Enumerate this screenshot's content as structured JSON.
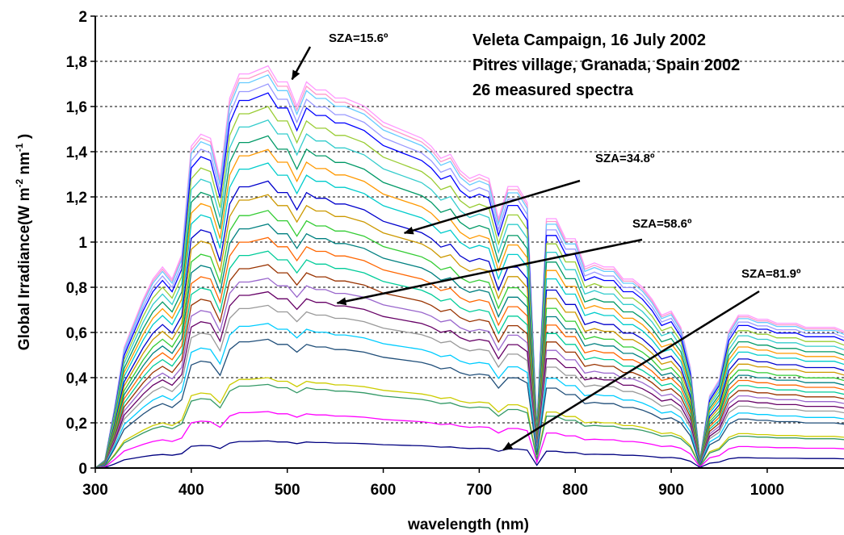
{
  "chart_data": {
    "type": "line",
    "title": "",
    "xlabel": "wavelength (nm)",
    "ylabel": {
      "main": "Global Irradiance(W m",
      "sup1": "-2",
      "mid": " nm",
      "sup2": "-1",
      "end": " )"
    },
    "xlim": [
      300,
      1080
    ],
    "ylim": [
      0,
      2
    ],
    "x_ticks": [
      "300",
      "400",
      "500",
      "600",
      "700",
      "800",
      "900",
      "1000"
    ],
    "y_ticks": [
      "0",
      "0,2",
      "0,4",
      "0,6",
      "0,8",
      "1",
      "1,2",
      "1,4",
      "1,6",
      "1,8",
      "2"
    ],
    "grid": "horizontal dashed",
    "info_text": [
      "Veleta Campaign, 16 July 2002",
      "Pitres village, Granada, Spain 2002",
      "26 measured spectra"
    ],
    "annotations": [
      {
        "text": "SZA=15.6º",
        "target": [
          505,
          1.72
        ]
      },
      {
        "text": "SZA=34.8º",
        "target": [
          622,
          1.04
        ]
      },
      {
        "text": "SZA=58.6º",
        "target": [
          552,
          0.73
        ]
      },
      {
        "text": "SZA=81.9º",
        "target": [
          725,
          0.08
        ]
      }
    ],
    "series_template": {
      "x": [
        300,
        310,
        320,
        330,
        340,
        350,
        360,
        370,
        380,
        390,
        400,
        410,
        420,
        430,
        440,
        450,
        460,
        470,
        480,
        490,
        500,
        510,
        520,
        530,
        540,
        550,
        560,
        570,
        580,
        590,
        600,
        610,
        620,
        630,
        640,
        650,
        660,
        670,
        680,
        690,
        700,
        710,
        720,
        730,
        740,
        750,
        760,
        770,
        780,
        790,
        800,
        810,
        820,
        830,
        840,
        850,
        860,
        870,
        880,
        890,
        900,
        910,
        920,
        930,
        940,
        950,
        960,
        970,
        980,
        990,
        1000,
        1010,
        1020,
        1030,
        1040,
        1050,
        1060,
        1070,
        1080
      ],
      "y": [
        0.0,
        0.02,
        0.15,
        0.3,
        0.36,
        0.42,
        0.47,
        0.5,
        0.47,
        0.53,
        0.8,
        0.83,
        0.82,
        0.72,
        0.92,
        0.98,
        0.98,
        0.99,
        1.0,
        0.96,
        0.96,
        0.9,
        0.96,
        0.94,
        0.94,
        0.92,
        0.92,
        0.91,
        0.9,
        0.88,
        0.86,
        0.85,
        0.84,
        0.83,
        0.82,
        0.8,
        0.77,
        0.78,
        0.74,
        0.72,
        0.73,
        0.72,
        0.62,
        0.7,
        0.7,
        0.66,
        0.1,
        0.62,
        0.62,
        0.57,
        0.57,
        0.5,
        0.51,
        0.5,
        0.5,
        0.47,
        0.47,
        0.45,
        0.42,
        0.38,
        0.39,
        0.35,
        0.25,
        0.02,
        0.18,
        0.22,
        0.34,
        0.38,
        0.38,
        0.37,
        0.37,
        0.36,
        0.36,
        0.36,
        0.35,
        0.35,
        0.35,
        0.35,
        0.34
      ]
    },
    "series_scales": [
      1.78,
      1.76,
      1.74,
      1.7,
      1.66,
      1.6,
      1.54,
      1.47,
      1.41,
      1.35,
      1.27,
      1.21,
      1.14,
      1.08,
      1.02,
      0.96,
      0.9,
      0.84,
      0.78,
      0.72,
      0.64,
      0.57,
      0.4,
      0.37,
      0.25,
      0.12
    ],
    "series_colors": [
      "#ff99ff",
      "#ff99cc",
      "#66ccff",
      "#9999ff",
      "#0000ff",
      "#99cc33",
      "#33cccc",
      "#009966",
      "#ff9900",
      "#00cccc",
      "#0000cc",
      "#cc9900",
      "#33cc33",
      "#008080",
      "#ff6600",
      "#00cc99",
      "#993300",
      "#9966cc",
      "#660066",
      "#999999",
      "#00ccff",
      "#1f4e79",
      "#cccc00",
      "#339966",
      "#ff00ff",
      "#000080"
    ]
  }
}
